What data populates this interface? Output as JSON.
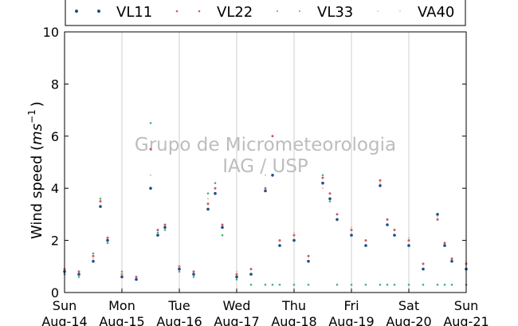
{
  "chart_data": {
    "type": "scatter",
    "ylabel_text": "Wind speed (",
    "ylabel_unit_base": "ms",
    "ylabel_unit_exp": "−1",
    "ylabel_close": ")",
    "ylim": [
      0,
      10
    ],
    "yticks": [
      "0",
      "2",
      "4",
      "6",
      "8",
      "10"
    ],
    "xlim": [
      "2016-08-14",
      "2016-08-21"
    ],
    "xticks": [
      {
        "day": "Sun",
        "date": "Aug-14"
      },
      {
        "day": "Mon",
        "date": "Aug-15"
      },
      {
        "day": "Tue",
        "date": "Aug-16"
      },
      {
        "day": "Wed",
        "date": "Aug-17"
      },
      {
        "day": "Thu",
        "date": "Aug-18"
      },
      {
        "day": "Fri",
        "date": "Aug-19"
      },
      {
        "day": "Sat",
        "date": "Aug-20"
      },
      {
        "day": "Sun",
        "date": "Aug-21"
      }
    ],
    "grid": "vertical",
    "legend_position": "top",
    "watermark": [
      "Grupo de Micrometeorologia",
      "IAG / USP"
    ],
    "series": [
      {
        "name": "VL11",
        "color": "#1f4e8c",
        "x": [
          "2016-08-14T00:00",
          "2016-08-14T06:00",
          "2016-08-14T12:00",
          "2016-08-14T15:00",
          "2016-08-14T18:00",
          "2016-08-15T00:00",
          "2016-08-15T06:00",
          "2016-08-15T12:00",
          "2016-08-15T15:00",
          "2016-08-15T18:00",
          "2016-08-16T00:00",
          "2016-08-16T06:00",
          "2016-08-16T12:00",
          "2016-08-16T15:00",
          "2016-08-16T18:00",
          "2016-08-17T00:00",
          "2016-08-17T06:00",
          "2016-08-17T12:00",
          "2016-08-17T15:00",
          "2016-08-17T18:00",
          "2016-08-18T00:00",
          "2016-08-18T06:00",
          "2016-08-18T12:00",
          "2016-08-18T15:00",
          "2016-08-18T18:00",
          "2016-08-19T00:00",
          "2016-08-19T06:00",
          "2016-08-19T12:00",
          "2016-08-19T15:00",
          "2016-08-19T18:00",
          "2016-08-20T00:00",
          "2016-08-20T06:00",
          "2016-08-20T12:00",
          "2016-08-20T15:00",
          "2016-08-20T18:00",
          "2016-08-21T00:00"
        ],
        "y": [
          0.8,
          0.7,
          1.2,
          3.3,
          2.0,
          0.6,
          0.5,
          4.0,
          2.2,
          2.5,
          0.9,
          0.7,
          3.2,
          3.8,
          2.5,
          0.6,
          0.7,
          3.9,
          4.5,
          1.8,
          2.0,
          1.2,
          4.2,
          3.6,
          2.8,
          2.2,
          1.8,
          4.1,
          2.6,
          2.2,
          1.8,
          0.9,
          3.0,
          1.8,
          1.2,
          0.9
        ]
      },
      {
        "name": "VL22",
        "color": "#c95a65",
        "x": [
          "2016-08-14T00:00",
          "2016-08-14T06:00",
          "2016-08-14T12:00",
          "2016-08-14T15:00",
          "2016-08-14T18:00",
          "2016-08-15T00:00",
          "2016-08-15T06:00",
          "2016-08-15T12:00",
          "2016-08-15T15:00",
          "2016-08-15T18:00",
          "2016-08-16T00:00",
          "2016-08-16T06:00",
          "2016-08-16T12:00",
          "2016-08-16T15:00",
          "2016-08-16T18:00",
          "2016-08-17T00:00",
          "2016-08-17T06:00",
          "2016-08-17T12:00",
          "2016-08-17T15:00",
          "2016-08-17T18:00",
          "2016-08-18T00:00",
          "2016-08-18T06:00",
          "2016-08-18T12:00",
          "2016-08-18T15:00",
          "2016-08-18T18:00",
          "2016-08-19T00:00",
          "2016-08-19T06:00",
          "2016-08-19T12:00",
          "2016-08-19T15:00",
          "2016-08-19T18:00",
          "2016-08-20T00:00",
          "2016-08-20T06:00",
          "2016-08-20T12:00",
          "2016-08-20T15:00",
          "2016-08-20T18:00",
          "2016-08-21T00:00"
        ],
        "y": [
          0.9,
          0.8,
          1.4,
          3.5,
          2.1,
          0.7,
          0.6,
          5.5,
          2.4,
          2.6,
          1.0,
          0.8,
          3.4,
          4.0,
          2.6,
          0.7,
          0.9,
          4.0,
          6.0,
          2.0,
          2.2,
          1.4,
          4.4,
          3.8,
          3.0,
          2.4,
          2.0,
          4.3,
          2.8,
          2.4,
          2.0,
          1.1,
          2.8,
          1.9,
          1.3,
          1.1
        ]
      },
      {
        "name": "VL33",
        "color": "#4caf7a",
        "x": [
          "2016-08-14T00:00",
          "2016-08-14T06:00",
          "2016-08-14T12:00",
          "2016-08-14T15:00",
          "2016-08-14T18:00",
          "2016-08-15T00:00",
          "2016-08-15T06:00",
          "2016-08-15T12:00",
          "2016-08-15T15:00",
          "2016-08-15T18:00",
          "2016-08-16T00:00",
          "2016-08-16T06:00",
          "2016-08-16T12:00",
          "2016-08-16T15:00",
          "2016-08-16T18:00",
          "2016-08-17T00:00",
          "2016-08-17T06:00",
          "2016-08-17T12:00",
          "2016-08-17T15:00",
          "2016-08-17T18:00",
          "2016-08-18T00:00",
          "2016-08-18T06:00",
          "2016-08-18T12:00",
          "2016-08-18T15:00",
          "2016-08-18T18:00",
          "2016-08-19T00:00",
          "2016-08-19T06:00",
          "2016-08-19T12:00",
          "2016-08-19T15:00",
          "2016-08-19T18:00",
          "2016-08-20T00:00",
          "2016-08-20T06:00",
          "2016-08-20T12:00",
          "2016-08-20T15:00",
          "2016-08-20T18:00",
          "2016-08-21T00:00"
        ],
        "y": [
          0.7,
          0.6,
          1.5,
          3.6,
          1.9,
          0.8,
          0.5,
          6.5,
          2.3,
          2.4,
          0.8,
          0.6,
          3.8,
          4.2,
          2.2,
          0.5,
          0.3,
          0.3,
          0.3,
          0.3,
          0.3,
          0.3,
          4.5,
          3.5,
          0.3,
          0.3,
          0.3,
          0.3,
          0.3,
          0.3,
          0.3,
          0.3,
          0.3,
          0.3,
          0.3,
          0.3
        ]
      },
      {
        "name": "VA40",
        "color": "#e9a383",
        "x": [
          "2016-08-14T00:00",
          "2016-08-14T12:00",
          "2016-08-15T00:00",
          "2016-08-15T12:00",
          "2016-08-16T00:00",
          "2016-08-16T12:00",
          "2016-08-17T00:00",
          "2016-08-17T12:00",
          "2016-08-18T00:00",
          "2016-08-18T12:00",
          "2016-08-19T00:00",
          "2016-08-19T12:00",
          "2016-08-20T00:00",
          "2016-08-20T12:00",
          "2016-08-21T00:00"
        ],
        "y": [
          0.9,
          1.3,
          0.7,
          4.5,
          1.0,
          3.6,
          0.8,
          4.5,
          2.3,
          4.0,
          2.5,
          4.2,
          2.1,
          2.9,
          1.2
        ]
      }
    ]
  }
}
